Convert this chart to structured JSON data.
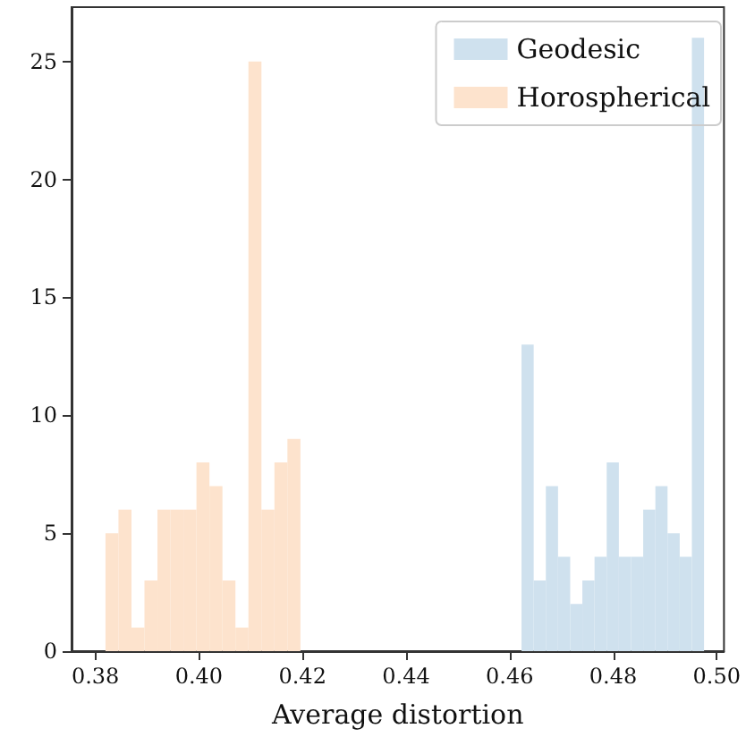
{
  "chart_data": {
    "type": "histogram",
    "xlabel": "Average distortion",
    "bins": [
      0.38195,
      0.38446,
      0.38697,
      0.38948,
      0.39199,
      0.3945,
      0.39701,
      0.39952,
      0.40203,
      0.40454,
      0.40705,
      0.40956,
      0.41207,
      0.41458,
      0.41709,
      0.4196,
      0.4623,
      0.46465,
      0.467,
      0.46935,
      0.4717,
      0.47405,
      0.4764,
      0.47875,
      0.4811,
      0.48345,
      0.4858,
      0.48815,
      0.4905,
      0.49285,
      0.4952,
      0.49755
    ],
    "series": [
      {
        "name": "Geodesic",
        "color": "#cfe1ee",
        "values": [
          null,
          null,
          null,
          null,
          null,
          null,
          null,
          null,
          null,
          null,
          null,
          null,
          null,
          null,
          null,
          null,
          13,
          3,
          7,
          4,
          2,
          3,
          4,
          8,
          4,
          4,
          6,
          7,
          5,
          4,
          26
        ]
      },
      {
        "name": "Horospherical",
        "color": "#fde3cd",
        "values": [
          5,
          6,
          1,
          3,
          6,
          6,
          6,
          8,
          7,
          3,
          1,
          25,
          6,
          8,
          9,
          null,
          null,
          null,
          null,
          null,
          null,
          null,
          null,
          null,
          null,
          null,
          null,
          null,
          null,
          null,
          null
        ]
      }
    ],
    "xlim": [
      0.3754,
      0.5014
    ],
    "xticks": [
      0.38,
      {
        "value": 0.4,
        "label": "0.40"
      },
      0.42,
      0.44,
      0.46,
      0.48,
      {
        "value": 0.5,
        "label": "0.50"
      }
    ],
    "ylim": [
      0,
      27.3
    ],
    "yticks": [
      0,
      5,
      10,
      15,
      20,
      25
    ],
    "grid": false,
    "legend": "top right"
  }
}
